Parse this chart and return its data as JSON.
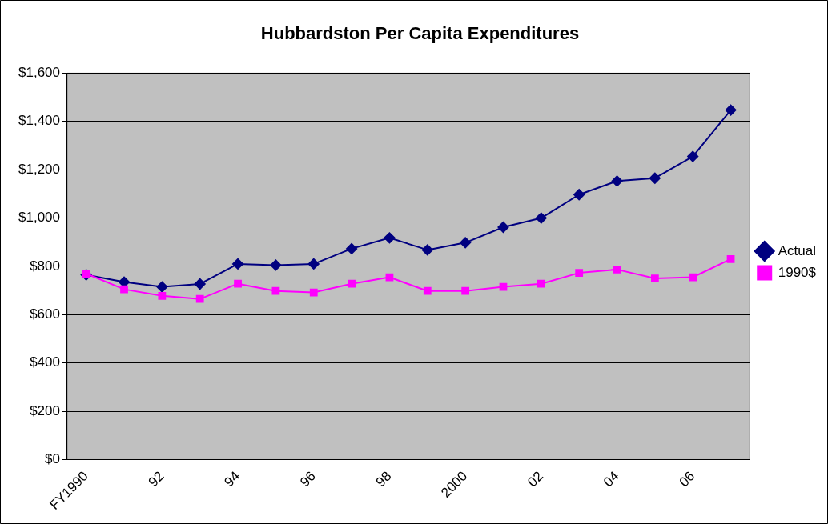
{
  "chart_data": {
    "type": "line",
    "title": "Hubbardston Per Capita Expenditures",
    "categories": [
      "FY1990",
      null,
      "92",
      null,
      "94",
      null,
      "96",
      null,
      "98",
      null,
      "2000",
      null,
      "02",
      null,
      "04",
      null,
      "06",
      null
    ],
    "series": [
      {
        "name": "Actual",
        "color": "#000080",
        "marker": "diamond",
        "values": [
          765,
          735,
          715,
          727,
          810,
          805,
          810,
          873,
          918,
          868,
          898,
          962,
          1000,
          1097,
          1153,
          1165,
          1255,
          1447
        ]
      },
      {
        "name": "1990$",
        "color": "#ff00ff",
        "marker": "square",
        "values": [
          770,
          705,
          678,
          665,
          728,
          698,
          692,
          728,
          755,
          698,
          698,
          715,
          728,
          773,
          787,
          750,
          755,
          830
        ]
      }
    ],
    "ylim": [
      0,
      1600
    ],
    "yticks": [
      {
        "value": 0,
        "label": "$0"
      },
      {
        "value": 200,
        "label": "$200"
      },
      {
        "value": 400,
        "label": "$400"
      },
      {
        "value": 600,
        "label": "$600"
      },
      {
        "value": 800,
        "label": "$800"
      },
      {
        "value": 1000,
        "label": "$1,000"
      },
      {
        "value": 1200,
        "label": "$1,200"
      },
      {
        "value": 1400,
        "label": "$1,400"
      },
      {
        "value": 1600,
        "label": "$1,600"
      }
    ],
    "grid": "y",
    "legend": "right",
    "line_style": "solid"
  }
}
